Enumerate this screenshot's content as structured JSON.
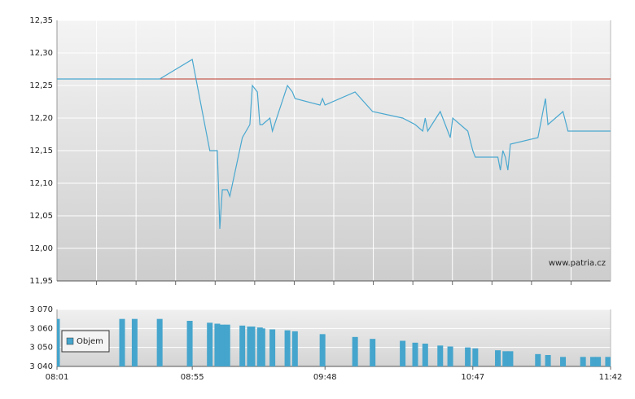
{
  "chart_data": [
    {
      "type": "line",
      "x": [
        481,
        522,
        535,
        542,
        545,
        546,
        547,
        549,
        550,
        555,
        558,
        559,
        561,
        562,
        563,
        566,
        567,
        573,
        575,
        576,
        586,
        587,
        588,
        600,
        607,
        619,
        624,
        627,
        628,
        629,
        634,
        638,
        639,
        645,
        647,
        648,
        657,
        658,
        659,
        660,
        661,
        662,
        673,
        676,
        677,
        683,
        685,
        702
      ],
      "values": [
        12.26,
        12.26,
        12.29,
        12.15,
        12.15,
        12.03,
        12.09,
        12.09,
        12.08,
        12.17,
        12.19,
        12.25,
        12.24,
        12.19,
        12.19,
        12.2,
        12.18,
        12.25,
        12.24,
        12.23,
        12.22,
        12.23,
        12.22,
        12.24,
        12.21,
        12.2,
        12.19,
        12.18,
        12.2,
        12.18,
        12.21,
        12.17,
        12.2,
        12.18,
        12.15,
        12.14,
        12.14,
        12.12,
        12.15,
        12.14,
        12.12,
        12.16,
        12.17,
        12.23,
        12.19,
        12.21,
        12.18,
        12.18
      ],
      "color": "#4aa8d0",
      "reference_line": {
        "value": 12.26,
        "color": "#c0392b"
      },
      "xlim": [
        481,
        702
      ],
      "ylim": [
        11.95,
        12.35
      ],
      "yticks": [
        {
          "value": 11.95,
          "label": "11,95"
        },
        {
          "value": 12.0,
          "label": "12,00"
        },
        {
          "value": 12.05,
          "label": "12,05"
        },
        {
          "value": 12.1,
          "label": "12,10"
        },
        {
          "value": 12.15,
          "label": "12,15"
        },
        {
          "value": 12.2,
          "label": "12,20"
        },
        {
          "value": 12.25,
          "label": "12,25"
        },
        {
          "value": 12.3,
          "label": "12,30"
        },
        {
          "value": 12.35,
          "label": "12,35"
        }
      ],
      "grid": true,
      "watermark": "www.patria.cz"
    },
    {
      "type": "bar",
      "x": [
        481,
        507,
        512,
        522,
        534,
        542,
        545,
        547,
        549,
        555,
        558,
        559,
        562,
        563,
        567,
        573,
        576,
        587,
        600,
        607,
        619,
        624,
        628,
        634,
        638,
        645,
        648,
        657,
        660,
        662,
        673,
        677,
        683,
        691,
        695,
        697,
        701
      ],
      "series": [
        {
          "name": "Objem",
          "color": "#45a5cc",
          "values": [
            3065,
            3065,
            3065,
            3065,
            3064,
            3063,
            3062.5,
            3062,
            3062,
            3061.5,
            3061,
            3061,
            3060.5,
            3060,
            3059.5,
            3059,
            3058.5,
            3057,
            3055.5,
            3054.5,
            3053.5,
            3052.5,
            3052,
            3051,
            3050.5,
            3050,
            3049.5,
            3048.5,
            3048,
            3048,
            3046.5,
            3046,
            3045,
            3045,
            3045,
            3045,
            3045
          ]
        }
      ],
      "xlim": [
        481,
        702
      ],
      "xticks": [
        {
          "value": 481,
          "label": "08:01"
        },
        {
          "value": 535,
          "label": "08:55"
        },
        {
          "value": 588,
          "label": "09:48"
        },
        {
          "value": 647,
          "label": "10:47"
        },
        {
          "value": 702,
          "label": "11:42"
        }
      ],
      "ylim": [
        3040,
        3070
      ],
      "yticks": [
        {
          "value": 3040,
          "label": "3 040"
        },
        {
          "value": 3050,
          "label": "3 050"
        },
        {
          "value": 3060,
          "label": "3 060"
        },
        {
          "value": 3070,
          "label": "3 070"
        }
      ],
      "grid": true,
      "legend": "left"
    }
  ]
}
